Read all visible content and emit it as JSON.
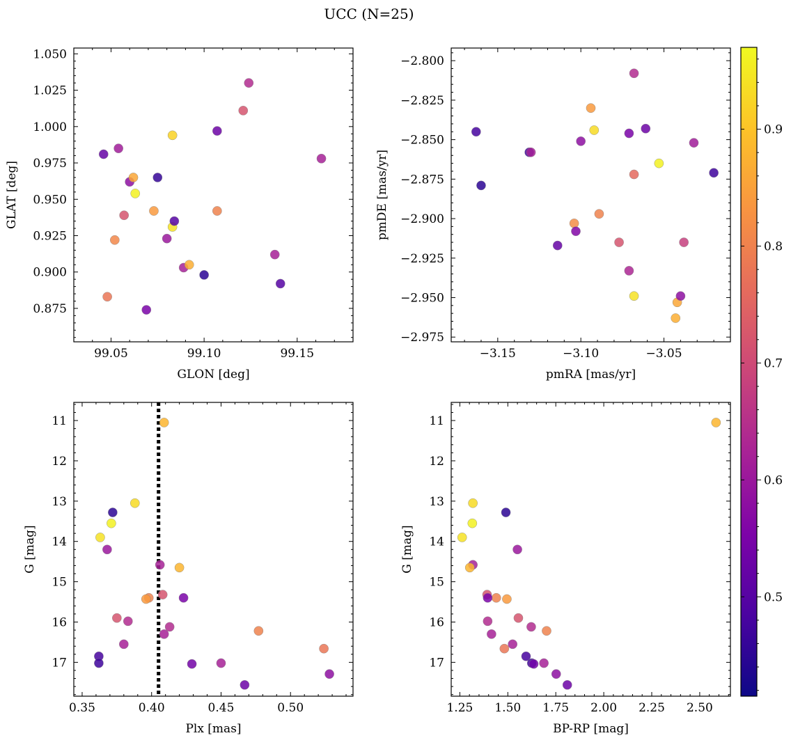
{
  "title": "UCC (N=25)",
  "colormap": "plasma",
  "colorbar": {
    "min": 0.415,
    "max": 0.97,
    "ticks": [
      0.5,
      0.6,
      0.7,
      0.8,
      0.9
    ],
    "tick_labels": [
      "0.5",
      "0.6",
      "0.7",
      "0.8",
      "0.9"
    ]
  },
  "chart_data": [
    {
      "id": "pos",
      "type": "scatter",
      "xlabel": "GLON [deg]",
      "ylabel": "GLAT [deg]",
      "xlim": [
        99.03,
        99.18
      ],
      "ylim": [
        0.852,
        1.054
      ],
      "y_inverted": false,
      "xticks": [
        99.05,
        99.1,
        99.15
      ],
      "xtick_labels": [
        "99.05",
        "99.10",
        "99.15"
      ],
      "yticks": [
        0.875,
        0.9,
        0.925,
        0.95,
        0.975,
        1.0,
        1.025,
        1.05
      ],
      "ytick_labels": [
        "0.875",
        "0.900",
        "0.925",
        "0.950",
        "0.975",
        "1.000",
        "1.025",
        "1.050"
      ],
      "points": [
        {
          "x": 99.046,
          "y": 0.981,
          "c": 0.52
        },
        {
          "x": 99.054,
          "y": 0.985,
          "c": 0.61
        },
        {
          "x": 99.06,
          "y": 0.962,
          "c": 0.58
        },
        {
          "x": 99.062,
          "y": 0.965,
          "c": 0.86
        },
        {
          "x": 99.063,
          "y": 0.954,
          "c": 0.96
        },
        {
          "x": 99.057,
          "y": 0.939,
          "c": 0.72
        },
        {
          "x": 99.052,
          "y": 0.922,
          "c": 0.81
        },
        {
          "x": 99.048,
          "y": 0.883,
          "c": 0.78
        },
        {
          "x": 99.069,
          "y": 0.874,
          "c": 0.55
        },
        {
          "x": 99.073,
          "y": 0.942,
          "c": 0.84
        },
        {
          "x": 99.075,
          "y": 0.965,
          "c": 0.46
        },
        {
          "x": 99.08,
          "y": 0.923,
          "c": 0.6
        },
        {
          "x": 99.083,
          "y": 0.994,
          "c": 0.92
        },
        {
          "x": 99.083,
          "y": 0.931,
          "c": 0.94
        },
        {
          "x": 99.084,
          "y": 0.935,
          "c": 0.5
        },
        {
          "x": 99.089,
          "y": 0.903,
          "c": 0.62
        },
        {
          "x": 99.092,
          "y": 0.905,
          "c": 0.87
        },
        {
          "x": 99.1,
          "y": 0.898,
          "c": 0.45
        },
        {
          "x": 99.107,
          "y": 0.997,
          "c": 0.53
        },
        {
          "x": 99.107,
          "y": 0.942,
          "c": 0.8
        },
        {
          "x": 99.121,
          "y": 1.011,
          "c": 0.72
        },
        {
          "x": 99.124,
          "y": 1.03,
          "c": 0.64
        },
        {
          "x": 99.138,
          "y": 0.912,
          "c": 0.62
        },
        {
          "x": 99.141,
          "y": 0.892,
          "c": 0.5
        },
        {
          "x": 99.163,
          "y": 0.978,
          "c": 0.62
        }
      ]
    },
    {
      "id": "pm",
      "type": "scatter",
      "xlabel": "pmRA [mas/yr]",
      "ylabel": "pmDE [mas/yr]",
      "xlim": [
        -3.178,
        -3.01
      ],
      "ylim": [
        -2.978,
        -2.792
      ],
      "y_inverted": false,
      "xticks": [
        -3.15,
        -3.1,
        -3.05
      ],
      "xtick_labels": [
        "−3.15",
        "−3.10",
        "−3.05"
      ],
      "yticks": [
        -2.975,
        -2.95,
        -2.925,
        -2.9,
        -2.875,
        -2.85,
        -2.825,
        -2.8
      ],
      "ytick_labels": [
        "−2.975",
        "−2.950",
        "−2.925",
        "−2.900",
        "−2.875",
        "−2.850",
        "−2.825",
        "−2.800"
      ],
      "points": [
        {
          "x": -3.163,
          "y": -2.845,
          "c": 0.48
        },
        {
          "x": -3.16,
          "y": -2.879,
          "c": 0.45
        },
        {
          "x": -3.131,
          "y": -2.858,
          "c": 0.47
        },
        {
          "x": -3.13,
          "y": -2.858,
          "c": 0.62
        },
        {
          "x": -3.114,
          "y": -2.917,
          "c": 0.52
        },
        {
          "x": -3.104,
          "y": -2.903,
          "c": 0.82
        },
        {
          "x": -3.103,
          "y": -2.908,
          "c": 0.56
        },
        {
          "x": -3.1,
          "y": -2.851,
          "c": 0.58
        },
        {
          "x": -3.094,
          "y": -2.83,
          "c": 0.84
        },
        {
          "x": -3.092,
          "y": -2.844,
          "c": 0.93
        },
        {
          "x": -3.089,
          "y": -2.897,
          "c": 0.8
        },
        {
          "x": -3.077,
          "y": -2.915,
          "c": 0.72
        },
        {
          "x": -3.071,
          "y": -2.846,
          "c": 0.55
        },
        {
          "x": -3.071,
          "y": -2.933,
          "c": 0.63
        },
        {
          "x": -3.068,
          "y": -2.808,
          "c": 0.64
        },
        {
          "x": -3.068,
          "y": -2.872,
          "c": 0.76
        },
        {
          "x": -3.068,
          "y": -2.949,
          "c": 0.94
        },
        {
          "x": -3.061,
          "y": -2.843,
          "c": 0.53
        },
        {
          "x": -3.053,
          "y": -2.865,
          "c": 0.96
        },
        {
          "x": -3.043,
          "y": -2.963,
          "c": 0.87
        },
        {
          "x": -3.042,
          "y": -2.953,
          "c": 0.86
        },
        {
          "x": -3.04,
          "y": -2.949,
          "c": 0.58
        },
        {
          "x": -3.038,
          "y": -2.915,
          "c": 0.68
        },
        {
          "x": -3.032,
          "y": -2.852,
          "c": 0.61
        },
        {
          "x": -3.02,
          "y": -2.871,
          "c": 0.47
        }
      ]
    },
    {
      "id": "plx",
      "type": "scatter",
      "xlabel": "Plx [mas]",
      "ylabel": "G [mag]",
      "xlim": [
        0.344,
        0.545
      ],
      "ylim": [
        17.84,
        10.55
      ],
      "y_inverted": true,
      "vline": {
        "x": 0.405,
        "style": "dotted"
      },
      "xticks": [
        0.35,
        0.4,
        0.45,
        0.5
      ],
      "xtick_labels": [
        "0.35",
        "0.40",
        "0.45",
        "0.50"
      ],
      "yticks": [
        11,
        12,
        13,
        14,
        15,
        16,
        17
      ],
      "ytick_labels": [
        "11",
        "12",
        "13",
        "14",
        "15",
        "16",
        "17"
      ],
      "points": [
        {
          "x": 0.409,
          "y": 11.05,
          "c": 0.88
        },
        {
          "x": 0.388,
          "y": 13.05,
          "c": 0.93
        },
        {
          "x": 0.372,
          "y": 13.28,
          "c": 0.45
        },
        {
          "x": 0.371,
          "y": 13.55,
          "c": 0.96
        },
        {
          "x": 0.363,
          "y": 13.9,
          "c": 0.94
        },
        {
          "x": 0.368,
          "y": 14.2,
          "c": 0.6
        },
        {
          "x": 0.406,
          "y": 14.58,
          "c": 0.62
        },
        {
          "x": 0.42,
          "y": 14.65,
          "c": 0.88
        },
        {
          "x": 0.408,
          "y": 15.32,
          "c": 0.72
        },
        {
          "x": 0.398,
          "y": 15.4,
          "c": 0.8
        },
        {
          "x": 0.396,
          "y": 15.43,
          "c": 0.84
        },
        {
          "x": 0.423,
          "y": 15.4,
          "c": 0.55
        },
        {
          "x": 0.375,
          "y": 15.9,
          "c": 0.72
        },
        {
          "x": 0.383,
          "y": 15.98,
          "c": 0.64
        },
        {
          "x": 0.413,
          "y": 16.12,
          "c": 0.64
        },
        {
          "x": 0.409,
          "y": 16.3,
          "c": 0.62
        },
        {
          "x": 0.477,
          "y": 16.22,
          "c": 0.8
        },
        {
          "x": 0.38,
          "y": 16.55,
          "c": 0.62
        },
        {
          "x": 0.524,
          "y": 16.66,
          "c": 0.78
        },
        {
          "x": 0.362,
          "y": 16.85,
          "c": 0.48
        },
        {
          "x": 0.362,
          "y": 17.02,
          "c": 0.47
        },
        {
          "x": 0.429,
          "y": 17.04,
          "c": 0.54
        },
        {
          "x": 0.45,
          "y": 17.02,
          "c": 0.62
        },
        {
          "x": 0.528,
          "y": 17.29,
          "c": 0.58
        },
        {
          "x": 0.467,
          "y": 17.56,
          "c": 0.53
        }
      ]
    },
    {
      "id": "cmd",
      "type": "scatter",
      "xlabel": "BP-RP [mag]",
      "ylabel": "G [mag]",
      "xlim": [
        1.205,
        2.66
      ],
      "ylim": [
        17.84,
        10.55
      ],
      "y_inverted": true,
      "xticks": [
        1.25,
        1.5,
        1.75,
        2.0,
        2.25,
        2.5
      ],
      "xtick_labels": [
        "1.25",
        "1.50",
        "1.75",
        "2.00",
        "2.25",
        "2.50"
      ],
      "yticks": [
        11,
        12,
        13,
        14,
        15,
        16,
        17
      ],
      "ytick_labels": [
        "11",
        "12",
        "13",
        "14",
        "15",
        "16",
        "17"
      ],
      "points": [
        {
          "x": 2.585,
          "y": 11.05,
          "c": 0.88
        },
        {
          "x": 1.318,
          "y": 13.05,
          "c": 0.93
        },
        {
          "x": 1.49,
          "y": 13.28,
          "c": 0.45
        },
        {
          "x": 1.315,
          "y": 13.55,
          "c": 0.96
        },
        {
          "x": 1.262,
          "y": 13.9,
          "c": 0.94
        },
        {
          "x": 1.55,
          "y": 14.2,
          "c": 0.6
        },
        {
          "x": 1.318,
          "y": 14.58,
          "c": 0.62
        },
        {
          "x": 1.302,
          "y": 14.65,
          "c": 0.88
        },
        {
          "x": 1.392,
          "y": 15.32,
          "c": 0.72
        },
        {
          "x": 1.44,
          "y": 15.4,
          "c": 0.8
        },
        {
          "x": 1.495,
          "y": 15.43,
          "c": 0.84
        },
        {
          "x": 1.395,
          "y": 15.4,
          "c": 0.55
        },
        {
          "x": 1.555,
          "y": 15.9,
          "c": 0.72
        },
        {
          "x": 1.395,
          "y": 15.98,
          "c": 0.64
        },
        {
          "x": 1.622,
          "y": 16.12,
          "c": 0.64
        },
        {
          "x": 1.415,
          "y": 16.3,
          "c": 0.62
        },
        {
          "x": 1.702,
          "y": 16.22,
          "c": 0.8
        },
        {
          "x": 1.525,
          "y": 16.55,
          "c": 0.62
        },
        {
          "x": 1.482,
          "y": 16.66,
          "c": 0.78
        },
        {
          "x": 1.595,
          "y": 16.85,
          "c": 0.48
        },
        {
          "x": 1.625,
          "y": 17.02,
          "c": 0.47
        },
        {
          "x": 1.635,
          "y": 17.04,
          "c": 0.54
        },
        {
          "x": 1.688,
          "y": 17.02,
          "c": 0.62
        },
        {
          "x": 1.752,
          "y": 17.29,
          "c": 0.58
        },
        {
          "x": 1.81,
          "y": 17.56,
          "c": 0.53
        }
      ]
    }
  ]
}
